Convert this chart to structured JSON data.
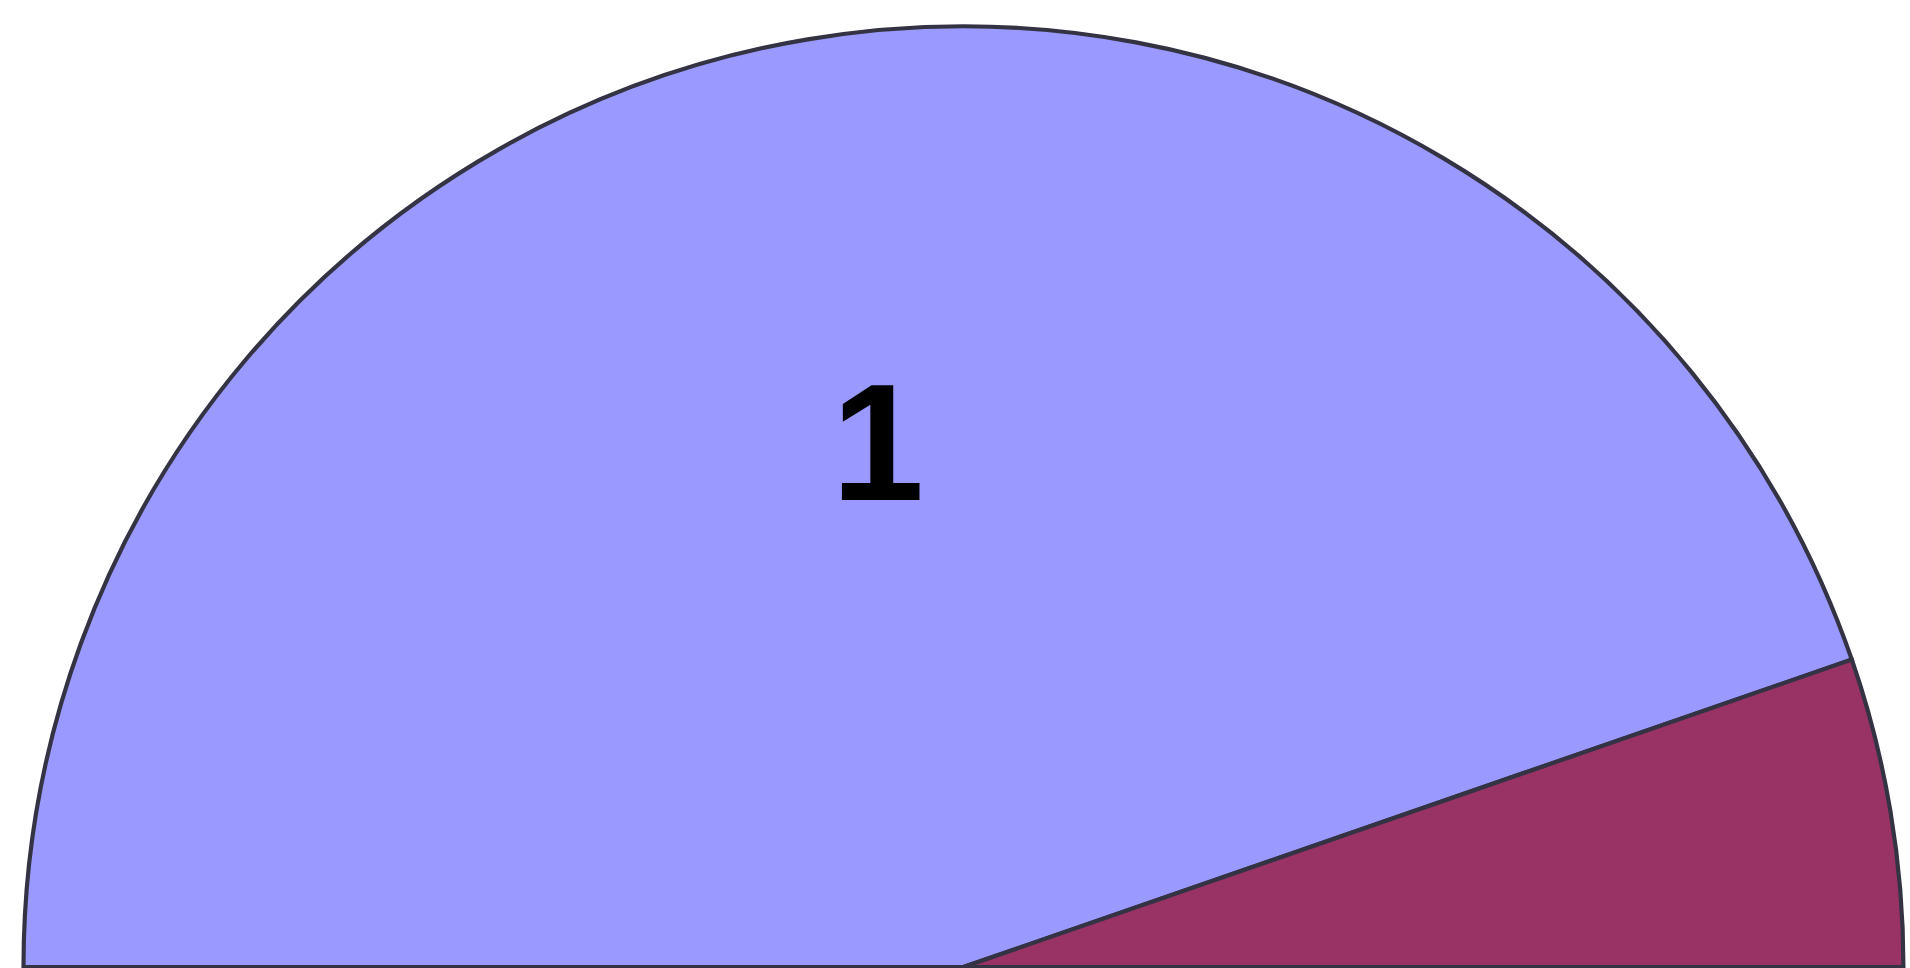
{
  "chart_data": {
    "type": "pie",
    "categories": [
      "1",
      null
    ],
    "values": [
      89.4,
      10.6
    ],
    "colors": [
      "#9999ff",
      "#993366"
    ],
    "legend": false
  }
}
